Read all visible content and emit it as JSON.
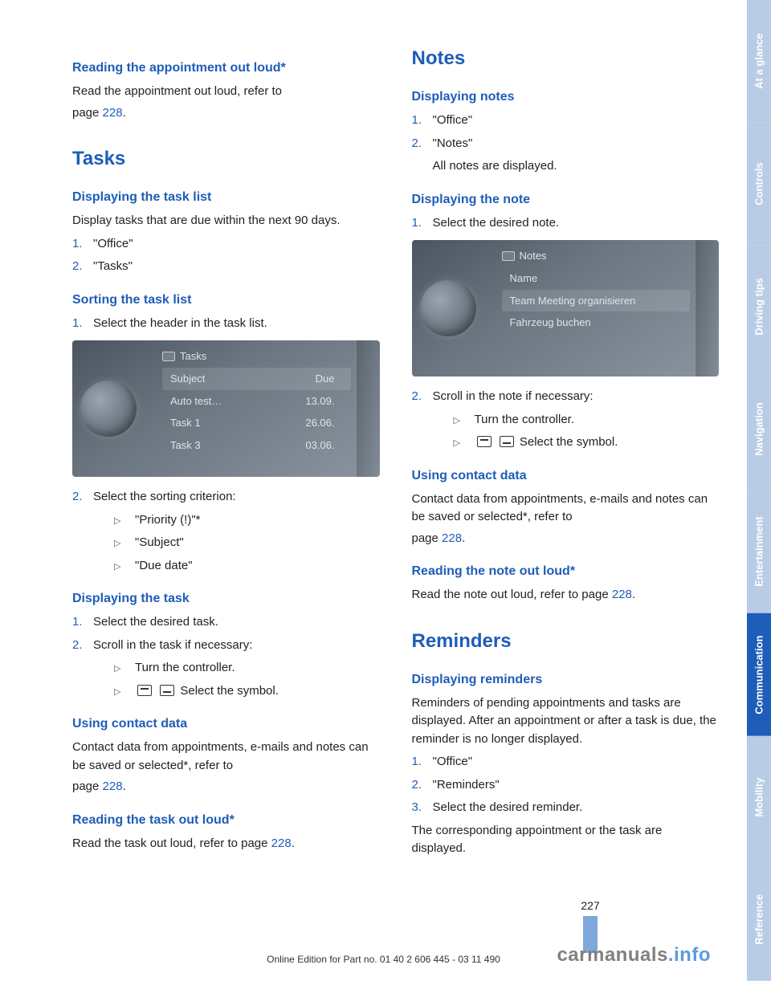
{
  "tabs": [
    "At a glance",
    "Controls",
    "Driving tips",
    "Navigation",
    "Entertainment",
    "Communication",
    "Mobility",
    "Reference"
  ],
  "active_tab_index": 5,
  "page_number": "227",
  "footer_line": "Online Edition for Part no. 01 40 2 606 445 - 03 11 490",
  "watermark_gray": "carmanuals",
  "watermark_blue": ".info",
  "left": {
    "h2_reading_appt": "Reading the appointment out loud*",
    "p_reading_appt_1": "Read the appointment out loud, refer to",
    "p_reading_appt_2a": "page ",
    "p_reading_appt_2b": "228",
    "p_reading_appt_2c": ".",
    "h1_tasks": "Tasks",
    "h2_disp_tasklist": "Displaying the task list",
    "p_disp_tasklist": "Display tasks that are due within the next 90 days.",
    "ol_tasklist_1": "\"Office\"",
    "ol_tasklist_2": "\"Tasks\"",
    "h2_sorting": "Sorting the task list",
    "ol_sorting_1": "Select the header in the task list.",
    "screenshot1": {
      "title": "Tasks",
      "col1": "Subject",
      "col2": "Due",
      "r1c1": "Auto test…",
      "r1c2": "13.09.",
      "r2c1": "Task 1",
      "r2c2": "26.06.",
      "r3c1": "Task 3",
      "r3c2": "03.06."
    },
    "ol_sorting_2": "Select the sorting criterion:",
    "ul_sort_a": "\"Priority (!)\"*",
    "ul_sort_b": "\"Subject\"",
    "ul_sort_c": "\"Due date\"",
    "h2_disp_task": "Displaying the task",
    "ol_disptask_1": "Select the desired task.",
    "ol_disptask_2": "Scroll in the task if necessary:",
    "ul_disptask_a": "Turn the controller.",
    "ul_disptask_b": "Select the symbol.",
    "h2_contact": "Using contact data",
    "p_contact_1": "Contact data from appointments, e-mails and notes can be saved or selected*, refer to",
    "p_contact_2a": "page ",
    "p_contact_2b": "228",
    "p_contact_2c": ".",
    "h2_read_task": "Reading the task out loud*",
    "p_read_task_a": "Read the task out loud, refer to page ",
    "p_read_task_b": "228",
    "p_read_task_c": "."
  },
  "right": {
    "h1_notes": "Notes",
    "h2_disp_notes": "Displaying notes",
    "ol_dispnotes_1": "\"Office\"",
    "ol_dispnotes_2": "\"Notes\"",
    "p_dispnotes_sub": "All notes are displayed.",
    "h2_disp_note": "Displaying the note",
    "ol_dispnote_1": "Select the desired note.",
    "screenshot2": {
      "title": "Notes",
      "col1": "Name",
      "row1": "Team Meeting organisieren",
      "row2": "Fahrzeug buchen"
    },
    "ol_dispnote_2": "Scroll in the note if necessary:",
    "ul_dispnote_a": "Turn the controller.",
    "ul_dispnote_b": "Select the symbol.",
    "h2_contact": "Using contact data",
    "p_contact_1": "Contact data from appointments, e-mails and notes can be saved or selected*, refer to",
    "p_contact_2a": "page ",
    "p_contact_2b": "228",
    "p_contact_2c": ".",
    "h2_read_note": "Reading the note out loud*",
    "p_read_note_a": "Read the note out loud, refer to page ",
    "p_read_note_b": "228",
    "p_read_note_c": ".",
    "h1_reminders": "Reminders",
    "h2_disp_rem": "Displaying reminders",
    "p_disp_rem": "Reminders of pending appointments and tasks are displayed. After an appointment or after a task is due, the reminder is no longer displayed.",
    "ol_rem_1": "\"Office\"",
    "ol_rem_2": "\"Reminders\"",
    "ol_rem_3": "Select the desired reminder.",
    "p_rem_end": "The corresponding appointment or the task are displayed."
  }
}
